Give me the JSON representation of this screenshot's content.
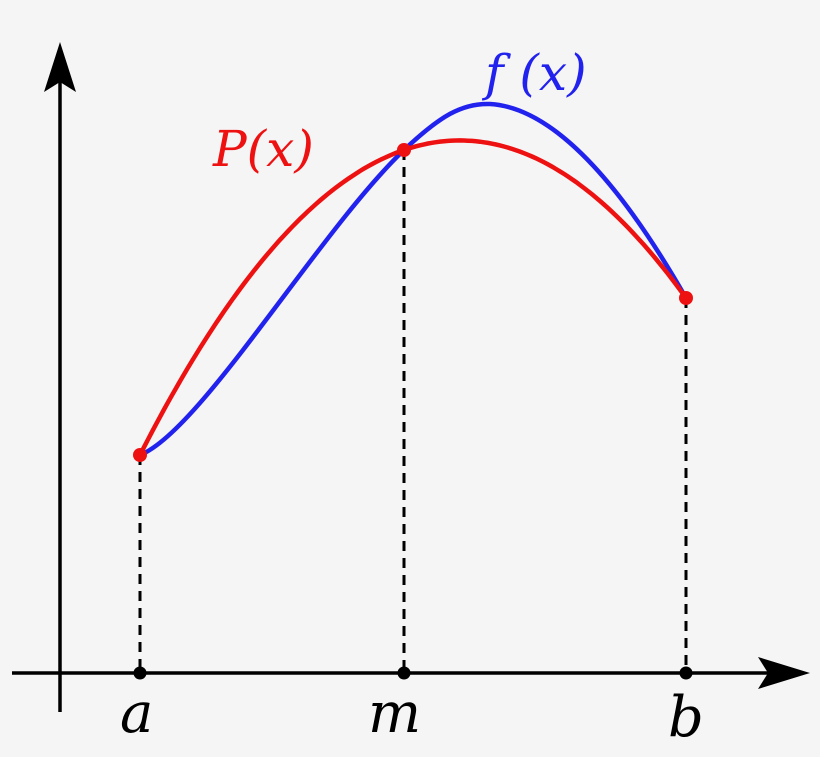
{
  "labels": {
    "polynomial": "P(x)",
    "function": "f (x)",
    "a": "a",
    "m": "m",
    "b": "b"
  },
  "colors": {
    "background": "#f5f5f5",
    "polynomial": "#ee1111",
    "function": "#2222ee",
    "axes": "#000000"
  }
}
